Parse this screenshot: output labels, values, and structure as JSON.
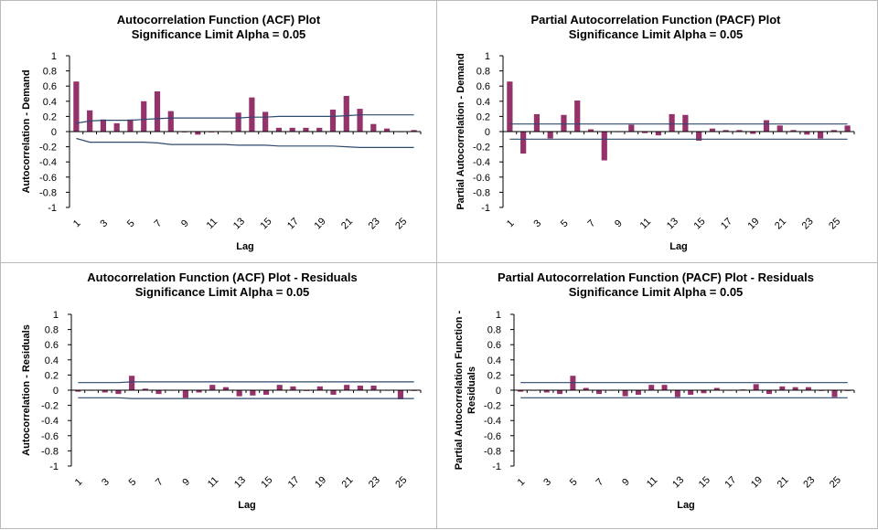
{
  "chart_data": [
    {
      "type": "bar",
      "title": "Autocorrelation Function (ACF) Plot",
      "subtitle": "Significance Limit Alpha = 0.05",
      "xlabel": "Lag",
      "ylabel": "Autocorrelation - Demand",
      "ylim": [
        -1,
        1
      ],
      "yticks": [
        "1",
        "0.8",
        "0.6",
        "0.4",
        "0.2",
        "0",
        "-0.2",
        "-0.4",
        "-0.6",
        "-0.8",
        "-1"
      ],
      "xtick_labels": [
        "1",
        "3",
        "5",
        "7",
        "9",
        "11",
        "13",
        "15",
        "17",
        "19",
        "21",
        "23",
        "25"
      ],
      "x": [
        1,
        2,
        3,
        4,
        5,
        6,
        7,
        8,
        9,
        10,
        11,
        12,
        13,
        14,
        15,
        16,
        17,
        18,
        19,
        20,
        21,
        22,
        23,
        24,
        25,
        26
      ],
      "values": [
        0.66,
        0.28,
        0.16,
        0.11,
        0.16,
        0.4,
        0.53,
        0.27,
        -0.01,
        -0.04,
        -0.01,
        0.0,
        0.25,
        0.45,
        0.26,
        0.05,
        0.05,
        0.05,
        0.05,
        0.29,
        0.47,
        0.3,
        0.1,
        0.04,
        0.0,
        0.02
      ],
      "upper_limit": [
        0.11,
        0.14,
        0.15,
        0.15,
        0.15,
        0.16,
        0.17,
        0.18,
        0.18,
        0.18,
        0.18,
        0.18,
        0.18,
        0.19,
        0.19,
        0.2,
        0.2,
        0.2,
        0.2,
        0.2,
        0.21,
        0.22,
        0.22,
        0.22,
        0.22,
        0.22
      ],
      "lower_limit": [
        -0.09,
        -0.14,
        -0.14,
        -0.14,
        -0.14,
        -0.14,
        -0.15,
        -0.17,
        -0.17,
        -0.17,
        -0.17,
        -0.17,
        -0.18,
        -0.18,
        -0.18,
        -0.19,
        -0.19,
        -0.19,
        -0.19,
        -0.19,
        -0.2,
        -0.21,
        -0.21,
        -0.21,
        -0.21,
        -0.21
      ]
    },
    {
      "type": "bar",
      "title": "Partial Autocorrelation Function (PACF) Plot",
      "subtitle": "Significance Limit Alpha = 0.05",
      "xlabel": "Lag",
      "ylabel": "Partial Autocorrelation - Demand",
      "ylim": [
        -1,
        1
      ],
      "yticks": [
        "1",
        "0.8",
        "0.6",
        "0.4",
        "0.2",
        "0",
        "-0.2",
        "-0.4",
        "-0.6",
        "-0.8",
        "-1"
      ],
      "xtick_labels": [
        "1",
        "3",
        "5",
        "7",
        "9",
        "11",
        "13",
        "15",
        "17",
        "19",
        "21",
        "23",
        "25"
      ],
      "x": [
        1,
        2,
        3,
        4,
        5,
        6,
        7,
        8,
        9,
        10,
        11,
        12,
        13,
        14,
        15,
        16,
        17,
        18,
        19,
        20,
        21,
        22,
        23,
        24,
        25,
        26
      ],
      "values": [
        0.66,
        -0.29,
        0.23,
        -0.09,
        0.22,
        0.41,
        0.03,
        -0.38,
        0.0,
        0.09,
        -0.02,
        -0.05,
        0.23,
        0.22,
        -0.12,
        0.04,
        0.02,
        0.02,
        -0.03,
        0.15,
        0.08,
        0.02,
        -0.04,
        -0.09,
        0.02,
        0.08
      ],
      "upper_limit": [
        0.1,
        0.1,
        0.1,
        0.1,
        0.1,
        0.1,
        0.1,
        0.1,
        0.1,
        0.1,
        0.1,
        0.1,
        0.1,
        0.1,
        0.1,
        0.1,
        0.1,
        0.1,
        0.1,
        0.1,
        0.1,
        0.1,
        0.1,
        0.1,
        0.1,
        0.1
      ],
      "lower_limit": [
        -0.1,
        -0.1,
        -0.1,
        -0.1,
        -0.1,
        -0.1,
        -0.1,
        -0.1,
        -0.1,
        -0.1,
        -0.1,
        -0.1,
        -0.1,
        -0.1,
        -0.1,
        -0.1,
        -0.1,
        -0.1,
        -0.1,
        -0.1,
        -0.1,
        -0.1,
        -0.1,
        -0.1,
        -0.1,
        -0.1
      ]
    },
    {
      "type": "bar",
      "title": "Autocorrelation Function (ACF) Plot - Residuals",
      "subtitle": "Significance Limit Alpha = 0.05",
      "xlabel": "Lag",
      "ylabel": "Autocorrelation - Residuals",
      "ylim": [
        -1,
        1
      ],
      "yticks": [
        "1",
        "0.8",
        "0.6",
        "0.4",
        "0.2",
        "0",
        "-0.2",
        "-0.4",
        "-0.6",
        "-0.8",
        "-1"
      ],
      "xtick_labels": [
        "1",
        "3",
        "5",
        "7",
        "9",
        "11",
        "13",
        "15",
        "17",
        "19",
        "21",
        "23",
        "25"
      ],
      "x": [
        1,
        2,
        3,
        4,
        5,
        6,
        7,
        8,
        9,
        10,
        11,
        12,
        13,
        14,
        15,
        16,
        17,
        18,
        19,
        20,
        21,
        22,
        23,
        24,
        25,
        26
      ],
      "values": [
        -0.02,
        0.0,
        -0.03,
        -0.05,
        0.19,
        0.02,
        -0.05,
        0.0,
        -0.1,
        -0.03,
        0.07,
        0.04,
        -0.08,
        -0.07,
        -0.06,
        0.07,
        0.05,
        -0.01,
        0.05,
        -0.06,
        0.07,
        0.06,
        0.06,
        0.0,
        -0.12,
        -0.01
      ],
      "upper_limit": [
        0.1,
        0.1,
        0.1,
        0.1,
        0.11,
        0.11,
        0.11,
        0.11,
        0.11,
        0.11,
        0.11,
        0.11,
        0.11,
        0.11,
        0.11,
        0.11,
        0.11,
        0.11,
        0.11,
        0.11,
        0.11,
        0.11,
        0.11,
        0.11,
        0.11,
        0.11
      ],
      "lower_limit": [
        -0.1,
        -0.1,
        -0.1,
        -0.1,
        -0.11,
        -0.11,
        -0.11,
        -0.11,
        -0.11,
        -0.11,
        -0.11,
        -0.11,
        -0.11,
        -0.11,
        -0.11,
        -0.11,
        -0.11,
        -0.11,
        -0.11,
        -0.11,
        -0.11,
        -0.11,
        -0.11,
        -0.11,
        -0.11,
        -0.11
      ]
    },
    {
      "type": "bar",
      "title": "Partial Autocorrelation Function (PACF) Plot - Residuals",
      "subtitle": "Significance Limit Alpha = 0.05",
      "xlabel": "Lag",
      "ylabel": "Partial Autocorrelation Function - Residuals",
      "ylabel_lines": [
        "Partial Autocorrelation Function -",
        "Residuals"
      ],
      "ylim": [
        -1,
        1
      ],
      "yticks": [
        "1",
        "0.8",
        "0.6",
        "0.4",
        "0.2",
        "0",
        "-0.2",
        "-0.4",
        "-0.6",
        "-0.8",
        "-1"
      ],
      "xtick_labels": [
        "1",
        "3",
        "5",
        "7",
        "9",
        "11",
        "13",
        "15",
        "17",
        "19",
        "21",
        "23",
        "25"
      ],
      "x": [
        1,
        2,
        3,
        4,
        5,
        6,
        7,
        8,
        9,
        10,
        11,
        12,
        13,
        14,
        15,
        16,
        17,
        18,
        19,
        20,
        21,
        22,
        23,
        24,
        25,
        26
      ],
      "values": [
        -0.02,
        0.0,
        -0.03,
        -0.05,
        0.19,
        0.03,
        -0.05,
        0.0,
        -0.08,
        -0.06,
        0.07,
        0.07,
        -0.09,
        -0.06,
        -0.04,
        0.03,
        0.0,
        0.01,
        0.08,
        -0.05,
        0.05,
        0.04,
        0.04,
        -0.01,
        -0.09,
        -0.01
      ],
      "upper_limit": [
        0.1,
        0.1,
        0.1,
        0.1,
        0.1,
        0.1,
        0.1,
        0.1,
        0.1,
        0.1,
        0.1,
        0.1,
        0.1,
        0.1,
        0.1,
        0.1,
        0.1,
        0.1,
        0.1,
        0.1,
        0.1,
        0.1,
        0.1,
        0.1,
        0.1,
        0.1
      ],
      "lower_limit": [
        -0.1,
        -0.1,
        -0.1,
        -0.1,
        -0.1,
        -0.1,
        -0.1,
        -0.1,
        -0.1,
        -0.1,
        -0.1,
        -0.1,
        -0.1,
        -0.1,
        -0.1,
        -0.1,
        -0.1,
        -0.1,
        -0.1,
        -0.1,
        -0.1,
        -0.1,
        -0.1,
        -0.1,
        -0.1,
        -0.1
      ]
    }
  ],
  "colors": {
    "bar": "#93336a",
    "limit": "#2f4a6e",
    "border": "#b9b9b9"
  }
}
